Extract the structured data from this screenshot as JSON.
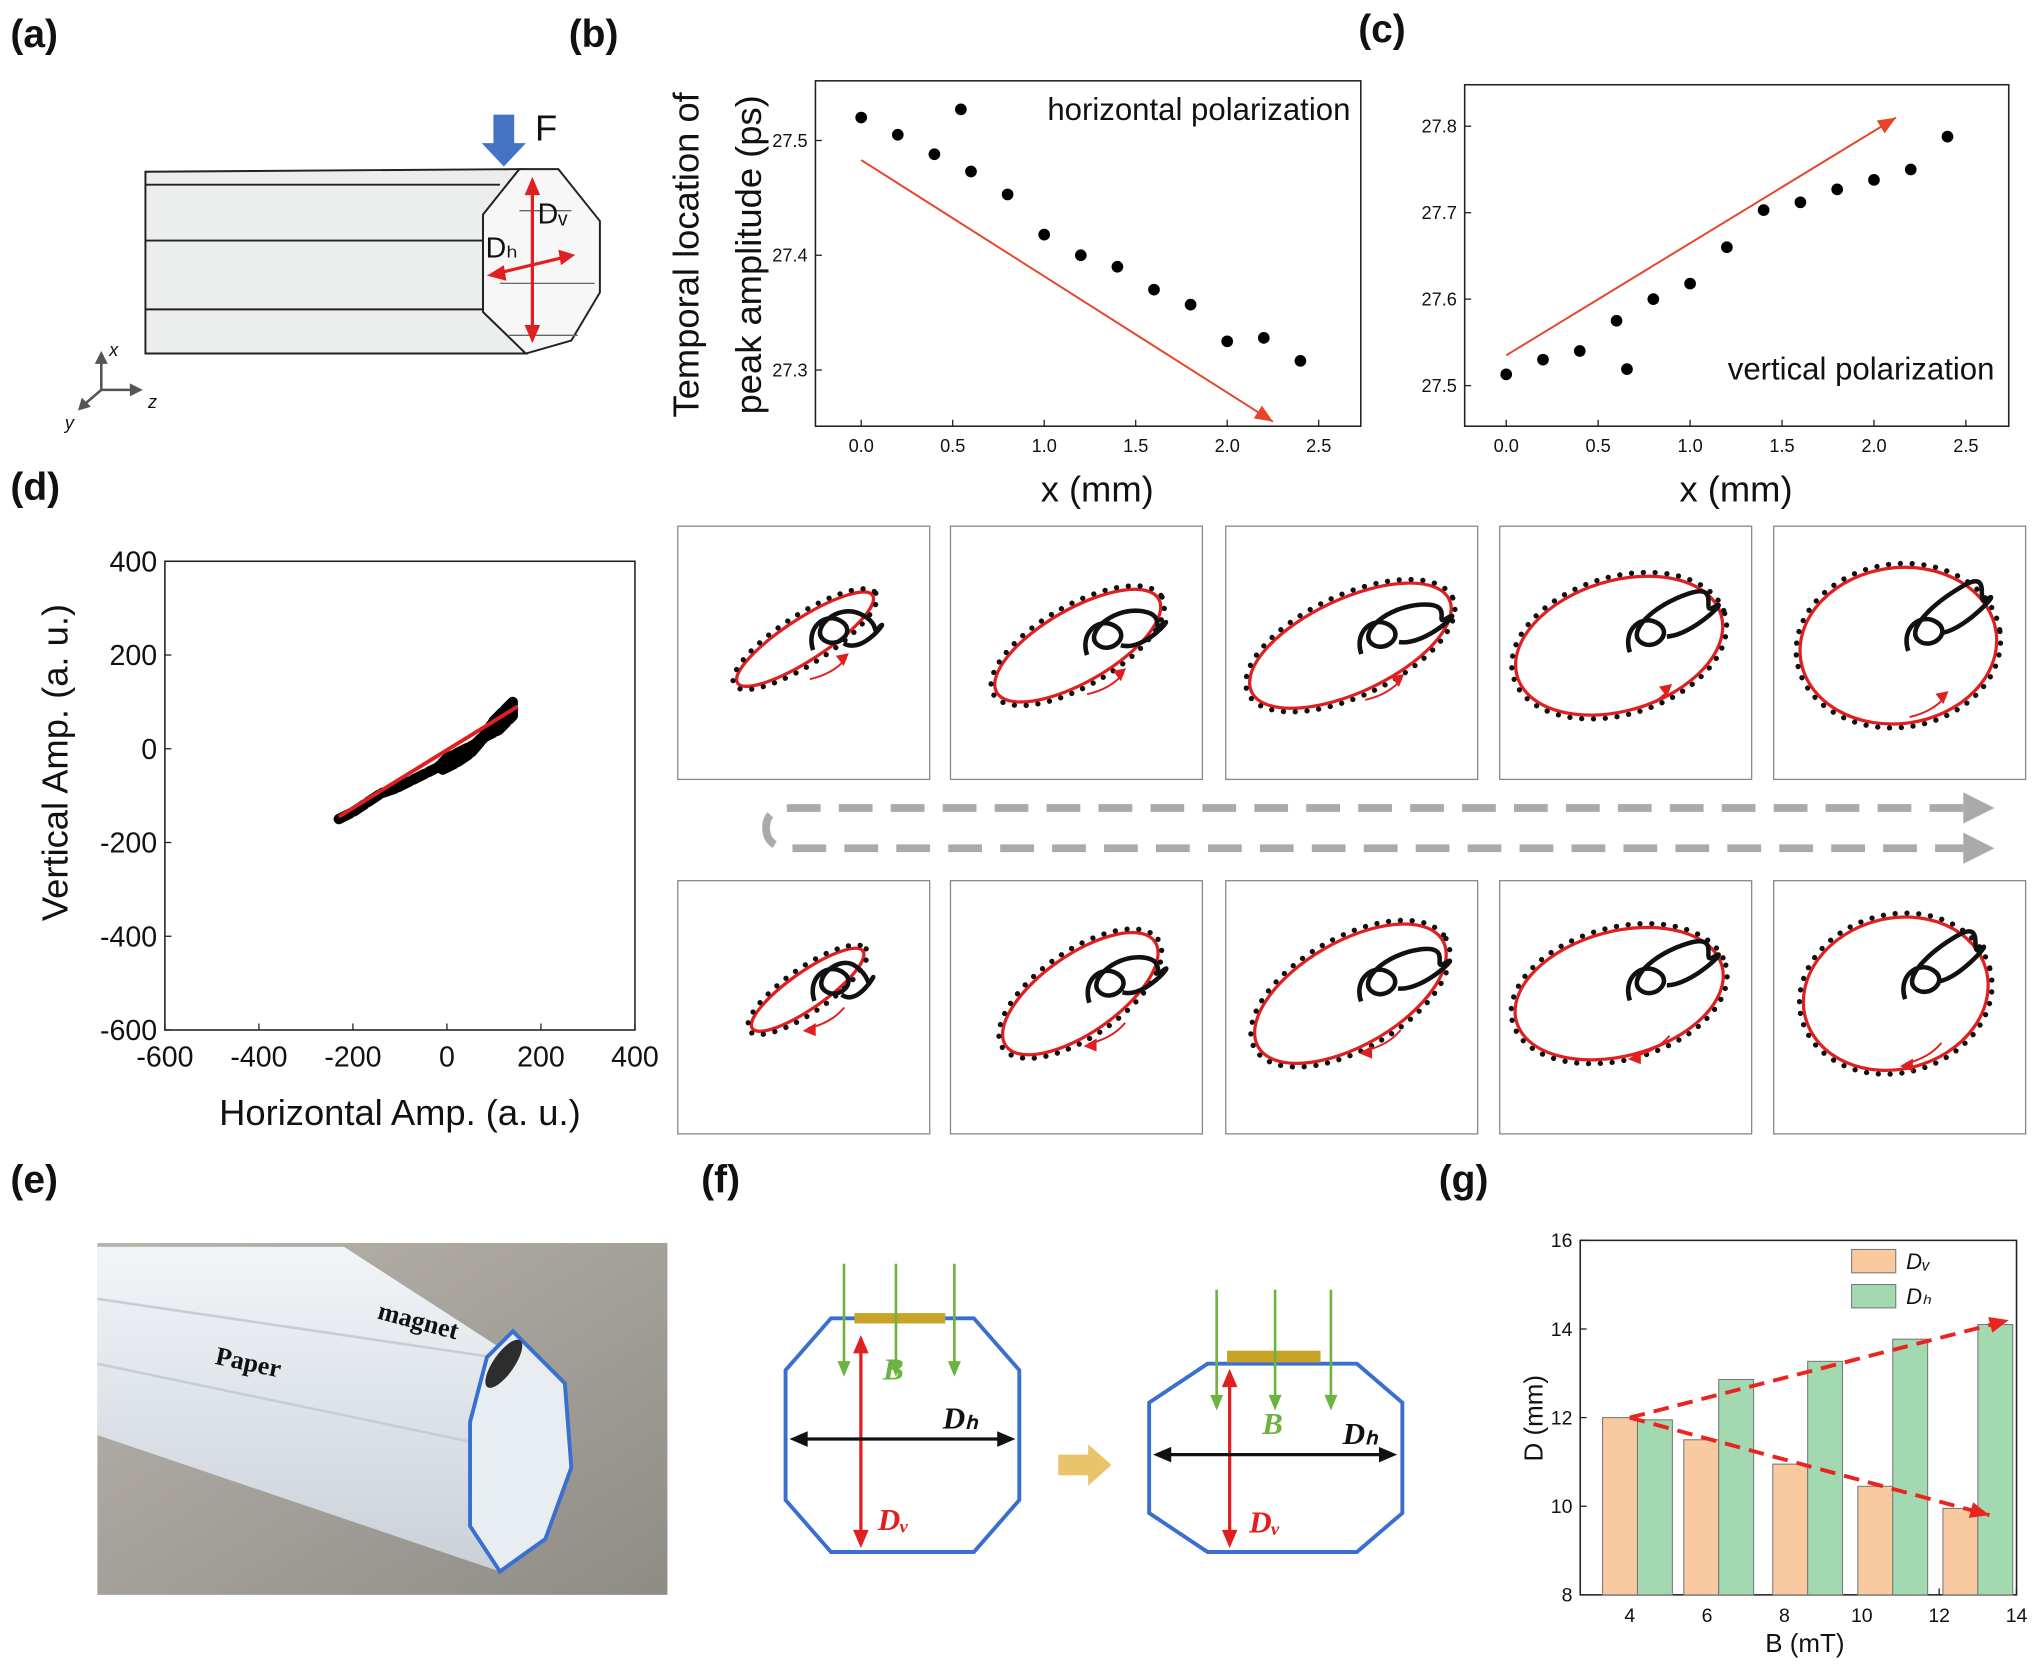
{
  "panel_labels": [
    "(a)",
    "(b)",
    "(c)",
    "(d)",
    "(e)",
    "(f)",
    "(g)"
  ],
  "diagram_a": {
    "force": "F",
    "dh": "Dₕ",
    "dv": "Dᵥ",
    "axis_x": "x",
    "axis_y": "y",
    "axis_z": "z"
  },
  "photo_e": {
    "paper": "Paper",
    "magnet": "magnet"
  },
  "diagram_f": {
    "left": {
      "b": "B",
      "dh": "Dₕ",
      "dv": "Dᵥ"
    },
    "right": {
      "b": "B",
      "dh": "Dₕ",
      "dv": "Dᵥ"
    }
  },
  "chart_data": [
    {
      "type": "scatter",
      "ylabel": [
        "Temporal location of",
        "peak amplitude (ps)"
      ],
      "xlabel": "x (mm)",
      "x": [
        0,
        0.2,
        0.4,
        0.6,
        0.8,
        1.0,
        1.2,
        1.4,
        1.6,
        1.8,
        2.0,
        2.2,
        2.4
      ],
      "series": [
        {
          "name": "horizontal polarization",
          "color": "#000000",
          "values": [
            27.52,
            27.505,
            27.488,
            27.473,
            27.453,
            27.418,
            27.4,
            27.39,
            27.37,
            27.357,
            27.325,
            27.328,
            27.308
          ]
        }
      ],
      "xlim": [
        -0.25,
        2.73
      ],
      "ylim": [
        27.251,
        27.552
      ],
      "xticks": [
        {
          "value": 0,
          "label": "0.0"
        },
        0.5,
        {
          "value": 1,
          "label": "1.0"
        },
        1.5,
        {
          "value": 2,
          "label": "2.0"
        },
        2.5
      ],
      "yticks": [
        27.3,
        27.4,
        27.5
      ],
      "grid": false,
      "legend": "upper right",
      "arrow": {
        "color": "#e8442a",
        "x": [
          0,
          2.25
        ],
        "y": [
          27.483,
          27.255
        ]
      }
    },
    {
      "type": "scatter",
      "xlabel": "x (mm)",
      "x": [
        0,
        0.2,
        0.4,
        0.6,
        0.8,
        1.0,
        1.2,
        1.4,
        1.6,
        1.8,
        2.0,
        2.2,
        2.4
      ],
      "series": [
        {
          "name": "vertical polarization",
          "color": "#000000",
          "values": [
            27.513,
            27.53,
            27.54,
            27.575,
            27.6,
            27.618,
            27.66,
            27.703,
            27.712,
            27.727,
            27.738,
            27.75,
            27.788
          ]
        }
      ],
      "xlim": [
        -0.226,
        2.733
      ],
      "ylim": [
        27.453,
        27.848
      ],
      "xticks": [
        {
          "value": 0,
          "label": "0.0"
        },
        0.5,
        {
          "value": 1,
          "label": "1.0"
        },
        1.5,
        {
          "value": 2,
          "label": "2.0"
        },
        2.5
      ],
      "yticks": [
        27.5,
        27.6,
        27.7,
        27.8
      ],
      "grid": false,
      "legend": "lower right",
      "arrow": {
        "color": "#e8442a",
        "x": [
          0,
          2.12
        ],
        "y": [
          27.535,
          27.81
        ]
      }
    },
    {
      "type": "line",
      "xlabel": "Horizontal Amp. (a. u.)",
      "ylabel": "Vertical Amp. (a. u.)",
      "x": [
        -230,
        -200,
        -170,
        -140,
        -110,
        -80,
        -50,
        -20,
        0,
        20,
        40,
        60,
        80,
        100,
        120,
        140,
        140,
        110,
        80,
        50,
        20,
        -10
      ],
      "series": [
        {
          "color": "#000000",
          "values": [
            -150,
            -135,
            -115,
            -95,
            -85,
            -70,
            -55,
            -40,
            -20,
            -10,
            0,
            10,
            30,
            60,
            80,
            100,
            70,
            40,
            25,
            -10,
            -30,
            -45
          ]
        }
      ],
      "fit": {
        "color": "#e02020",
        "x": [
          -230,
          150
        ],
        "y": [
          -145,
          90
        ]
      },
      "xlim": [
        -600,
        400
      ],
      "ylim": [
        -600,
        400
      ],
      "xticks": [
        -600,
        -400,
        -200,
        0,
        200,
        400
      ],
      "yticks": [
        -600,
        -400,
        -200,
        0,
        200,
        400
      ],
      "grid": false
    },
    {
      "type": "bar",
      "xlabel": "B (mT)",
      "ylabel": "D (mm)",
      "x": [
        4.2,
        6.3,
        8.6,
        10.8,
        13.0
      ],
      "series": [
        {
          "name": "Dᵥ",
          "color": "#f9c9a0",
          "values": [
            12.0,
            11.5,
            10.95,
            10.45,
            9.95
          ]
        },
        {
          "name": "Dₕ",
          "color": "#a3d9b1",
          "values": [
            11.95,
            12.86,
            13.27,
            13.77,
            14.1
          ]
        }
      ],
      "xlim": [
        2.72,
        14
      ],
      "ylim": [
        8,
        16
      ],
      "xticks": [
        4,
        6,
        8,
        10,
        12,
        14
      ],
      "yticks": [
        8,
        10,
        12,
        14,
        16
      ],
      "grid": false,
      "legend": "upper right",
      "arrows": [
        {
          "color": "#e8251f",
          "x": [
            4,
            13.8
          ],
          "y": [
            12,
            14.2
          ]
        },
        {
          "color": "#e8251f",
          "x": [
            4,
            13.3
          ],
          "y": [
            12,
            9.8
          ]
        }
      ]
    }
  ]
}
